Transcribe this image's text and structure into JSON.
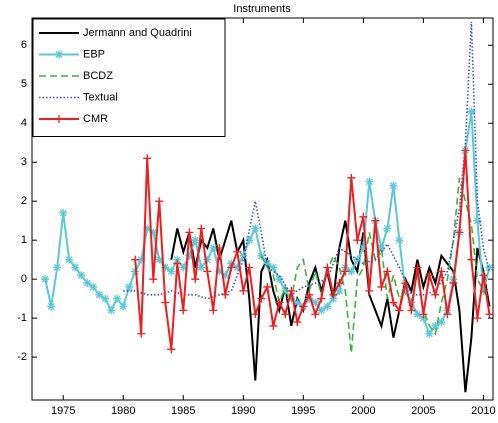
{
  "chart_data": {
    "type": "line",
    "title": "Instruments",
    "xlim": [
      1972.4,
      2010.8
    ],
    "xticks": [
      1975,
      1980,
      1985,
      1990,
      1995,
      2000,
      2005,
      2010
    ],
    "ylim": [
      -3.1,
      6.7
    ],
    "yticks": [
      -2,
      -1,
      0,
      1,
      2,
      3,
      4,
      5,
      6
    ],
    "legend": "top-left",
    "series": [
      {
        "name": "Jermann and Quadrini",
        "color": "#000000",
        "dash": "solid",
        "x": [
          1984,
          1984.5,
          1985,
          1985.5,
          1986,
          1986.5,
          1987,
          1987.5,
          1988,
          1988.5,
          1989,
          1989.5,
          1990,
          1990.5,
          1991,
          1991.5,
          1992,
          1992.5,
          1993,
          1993.5,
          1994,
          1994.5,
          1995,
          1995.5,
          1996,
          1996.5,
          1997,
          1997.5,
          1998,
          1998.5,
          1999,
          1999.5,
          2000,
          2000.5,
          2001,
          2001.5,
          2002,
          2002.5,
          2003,
          2003.5,
          2004,
          2004.5,
          2005,
          2005.5,
          2006,
          2006.5,
          2007,
          2007.5,
          2008,
          2008.5,
          2009,
          2009.5,
          2010,
          2010.5
        ],
        "values": [
          0.5,
          1.3,
          0.7,
          1.2,
          0.3,
          1.0,
          0.8,
          1.3,
          0.5,
          1.0,
          1.5,
          0.7,
          1.0,
          -0.5,
          -2.6,
          0.2,
          0.5,
          -0.3,
          -0.8,
          -0.2,
          -1.2,
          -0.5,
          -0.8,
          -0.1,
          0.3,
          -0.3,
          0.2,
          -0.5,
          0.8,
          1.5,
          0.5,
          0.2,
          1.2,
          -0.4,
          -0.8,
          -1.2,
          -0.5,
          -1.5,
          -0.8,
          0.0,
          -0.3,
          0.5,
          -0.2,
          0.3,
          -0.1,
          0.6,
          0.4,
          0.2,
          -0.8,
          -2.9,
          -1.5,
          0.8,
          0.2,
          -0.7
        ]
      },
      {
        "name": "EBP",
        "color": "#5bc8d8",
        "dash": "solid",
        "marker": "star",
        "x": [
          1973.5,
          1974,
          1974.5,
          1975,
          1975.5,
          1976,
          1976.5,
          1977,
          1977.5,
          1978,
          1978.5,
          1979,
          1979.5,
          1980,
          1980.5,
          1981,
          1981.5,
          1982,
          1982.5,
          1983,
          1983.5,
          1984,
          1984.5,
          1985,
          1985.5,
          1986,
          1986.5,
          1987,
          1987.5,
          1988,
          1988.5,
          1989,
          1989.5,
          1990,
          1990.5,
          1991,
          1991.5,
          1992,
          1992.5,
          1993,
          1993.5,
          1994,
          1994.5,
          1995,
          1995.5,
          1996,
          1996.5,
          1997,
          1997.5,
          1998,
          1998.5,
          1999,
          1999.5,
          2000,
          2000.5,
          2001,
          2001.5,
          2002,
          2002.5,
          2003,
          2003.5,
          2004,
          2004.5,
          2005,
          2005.5,
          2006,
          2006.5,
          2007,
          2007.5,
          2008,
          2008.5,
          2009,
          2009.5,
          2010,
          2010.5
        ],
        "values": [
          0,
          -0.7,
          0.3,
          1.7,
          0.5,
          0.3,
          0.1,
          -0.1,
          -0.2,
          -0.4,
          -0.5,
          -0.8,
          -0.5,
          -0.7,
          -0.2,
          0.2,
          0.5,
          1.3,
          1.2,
          0.5,
          0.3,
          0.2,
          0.5,
          0.3,
          0.6,
          1.0,
          0.3,
          0.5,
          0.8,
          0.2,
          0.1,
          0.4,
          0.3,
          0.6,
          1.0,
          1.3,
          0.6,
          0.4,
          0.3,
          0.0,
          -0.3,
          -0.5,
          -0.6,
          -0.7,
          -0.5,
          -0.6,
          -0.8,
          -0.7,
          -0.5,
          -0.3,
          0.3,
          0.2,
          0.5,
          0.8,
          2.5,
          1.5,
          0.8,
          1.3,
          2.4,
          1.0,
          -0.3,
          -0.6,
          -0.9,
          -1.0,
          -1.4,
          -1.2,
          -1.1,
          -0.8,
          0.0,
          1.2,
          3.3,
          4.3,
          1.5,
          -0.3,
          0.3
        ]
      },
      {
        "name": "BCDZ",
        "color": "#3cb43c",
        "dash": "dashed",
        "x": [
          1991.5,
          1992,
          1992.5,
          1993,
          1993.5,
          1994,
          1994.5,
          1995,
          1995.5,
          1996,
          1996.5,
          1997,
          1997.5,
          1998,
          1998.5,
          1999,
          1999.5,
          2000,
          2000.5,
          2001,
          2001.5,
          2002,
          2002.5,
          2003,
          2003.5,
          2004,
          2004.5,
          2005,
          2005.5,
          2006,
          2006.5,
          2007,
          2007.5,
          2008,
          2008.5,
          2009,
          2009.5,
          2010,
          2010.5
        ],
        "values": [
          0.6,
          0.3,
          0.1,
          -0.6,
          -0.2,
          -0.5,
          0.3,
          0.5,
          -0.3,
          0.2,
          -0.4,
          0.2,
          0.6,
          0.3,
          -0.3,
          -1.9,
          0.0,
          0.3,
          1.2,
          0.5,
          0.8,
          -0.5,
          0.1,
          -0.5,
          -0.3,
          -0.6,
          0.1,
          -0.8,
          -1.2,
          -1.4,
          -0.6,
          0.0,
          1.0,
          2.6,
          2.0,
          1.4,
          0.0,
          -0.3,
          -0.5
        ]
      },
      {
        "name": "Textual",
        "color": "#3c50c8",
        "dash": "dotted",
        "x": [
          1980,
          1981,
          1982,
          1983,
          1984,
          1985,
          1986,
          1987,
          1988,
          1989,
          1990,
          1991,
          1991.5,
          1992,
          1993,
          1994,
          1995,
          1996,
          1997,
          1998,
          1999,
          2000,
          2001,
          2002,
          2003,
          2004,
          2005,
          2006,
          2007,
          2008,
          2008.5,
          2009,
          2009.5,
          2010,
          2010.5
        ],
        "values": [
          -0.3,
          -0.3,
          -0.4,
          -0.4,
          -0.3,
          -0.4,
          -0.4,
          -0.5,
          -0.4,
          -0.3,
          0.5,
          2.0,
          1.2,
          0.3,
          0.1,
          -0.4,
          -0.2,
          -0.1,
          0.0,
          0.8,
          0.6,
          0.4,
          0.5,
          0.9,
          0.3,
          -0.4,
          -0.4,
          -0.3,
          0.2,
          1.8,
          3.5,
          6.6,
          2.0,
          0.8,
          0.2
        ]
      },
      {
        "name": "CMR",
        "color": "#f01e1e",
        "dash": "solid",
        "marker": "plus",
        "x": [
          1981,
          1981.5,
          1982,
          1982.5,
          1983,
          1983.5,
          1984,
          1984.5,
          1985,
          1985.5,
          1986,
          1986.5,
          1987,
          1987.5,
          1988,
          1988.5,
          1989,
          1989.5,
          1990,
          1990.5,
          1991,
          1991.5,
          1992,
          1992.5,
          1993,
          1993.5,
          1994,
          1994.5,
          1995,
          1995.5,
          1996,
          1996.5,
          1997,
          1997.5,
          1998,
          1998.5,
          1999,
          1999.5,
          2000,
          2000.5,
          2001,
          2001.5,
          2002,
          2002.5,
          2003,
          2003.5,
          2004,
          2004.5,
          2005,
          2005.5,
          2006,
          2006.5,
          2007,
          2007.5,
          2008,
          2008.5,
          2009,
          2009.5,
          2010,
          2010.5
        ],
        "values": [
          0.5,
          -1.4,
          3.1,
          0.0,
          2.0,
          -0.6,
          -1.8,
          0.4,
          -0.8,
          1.2,
          0.0,
          1.3,
          0.2,
          -0.8,
          0.8,
          -0.4,
          0.3,
          0.7,
          -0.3,
          0.3,
          -0.9,
          -0.5,
          -0.2,
          -1.2,
          -0.6,
          -0.9,
          -0.3,
          -1.1,
          -0.7,
          -0.4,
          -0.9,
          -0.5,
          0.3,
          -0.4,
          -0.1,
          0.2,
          2.6,
          1.0,
          1.6,
          -0.3,
          1.5,
          -0.2,
          0.2,
          -0.6,
          -0.8,
          -0.1,
          -0.8,
          0.3,
          -0.9,
          0.1,
          -0.4,
          0.2,
          -0.9,
          -0.1,
          1.2,
          3.3,
          0.5,
          -1.0,
          0.1,
          -0.9
        ]
      }
    ]
  }
}
